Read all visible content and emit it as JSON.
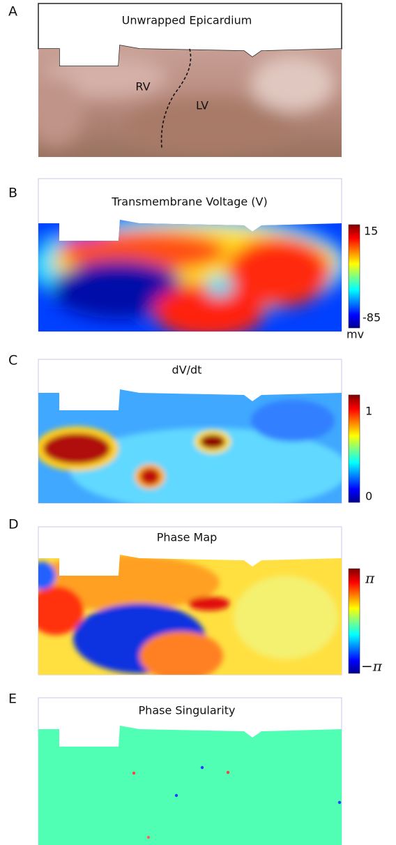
{
  "panels": [
    {
      "letter": "A",
      "title": "Unwrapped Epicardium",
      "labels": [
        "RV",
        "LV"
      ]
    },
    {
      "letter": "B",
      "title": "Transmembrane Voltage (V)",
      "colorbar": {
        "max": "15",
        "min": "-85",
        "unit": "mv"
      }
    },
    {
      "letter": "C",
      "title": "dV/dt",
      "colorbar": {
        "max": "1",
        "min": "0"
      }
    },
    {
      "letter": "D",
      "title": "Phase Map",
      "colorbar": {
        "max": "π",
        "min": "−π"
      }
    },
    {
      "letter": "E",
      "title": "Phase Singularity"
    }
  ]
}
